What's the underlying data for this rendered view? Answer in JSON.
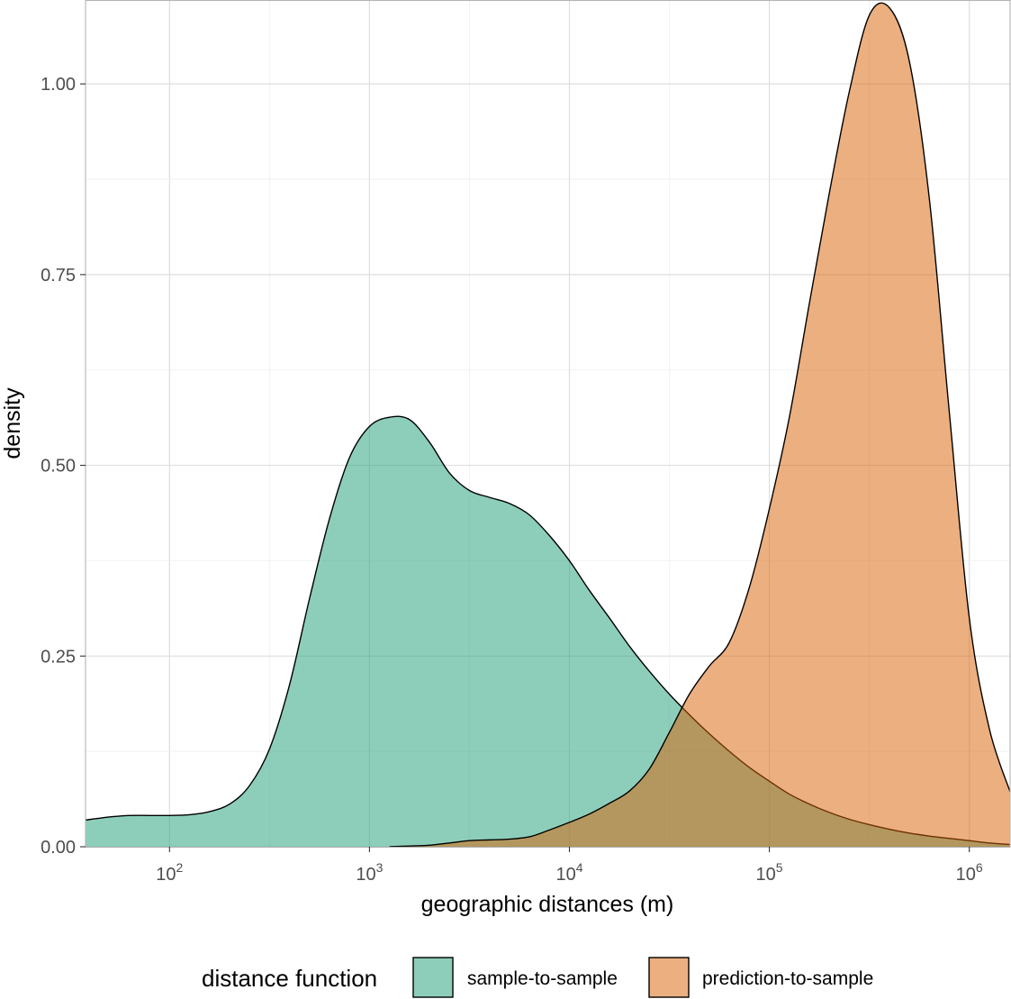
{
  "chart_data": {
    "type": "area",
    "subtype": "density",
    "xlabel": "geographic distances (m)",
    "ylabel": "density",
    "x_scale": "log10",
    "xlim": [
      38,
      1600000
    ],
    "ylim": [
      0,
      1.11
    ],
    "grid": true,
    "x_ticks": [
      {
        "value": 100,
        "base": "10",
        "exp": "2"
      },
      {
        "value": 1000,
        "base": "10",
        "exp": "3"
      },
      {
        "value": 10000,
        "base": "10",
        "exp": "4"
      },
      {
        "value": 100000,
        "base": "10",
        "exp": "5"
      },
      {
        "value": 1000000,
        "base": "10",
        "exp": "6"
      }
    ],
    "y_ticks": [
      {
        "value": 0,
        "label": "0.00"
      },
      {
        "value": 0.25,
        "label": "0.25"
      },
      {
        "value": 0.5,
        "label": "0.50"
      },
      {
        "value": 0.75,
        "label": "0.75"
      },
      {
        "value": 1.0,
        "label": "1.00"
      }
    ],
    "legend_title": "distance function",
    "legend_position": "bottom",
    "series": [
      {
        "name": "sample-to-sample",
        "color": "#1b9e77",
        "fill_opacity": 0.5,
        "x": [
          38,
          50,
          63,
          79,
          100,
          126,
          158,
          200,
          251,
          316,
          398,
          501,
          631,
          794,
          1000,
          1259,
          1585,
          2000,
          2512,
          3162,
          3981,
          5012,
          6310,
          7943,
          10000,
          12589,
          15849,
          19953,
          25119,
          31623,
          39811,
          50119,
          63096,
          79433,
          100000,
          125893,
          158489,
          199526,
          251189,
          316228,
          398107,
          501187,
          630957,
          794328,
          1000000,
          1258925,
          1600000
        ],
        "y": [
          0.035,
          0.039,
          0.041,
          0.041,
          0.041,
          0.042,
          0.046,
          0.056,
          0.08,
          0.128,
          0.212,
          0.325,
          0.43,
          0.51,
          0.551,
          0.563,
          0.56,
          0.53,
          0.49,
          0.467,
          0.458,
          0.45,
          0.435,
          0.408,
          0.375,
          0.336,
          0.3,
          0.263,
          0.23,
          0.2,
          0.173,
          0.148,
          0.125,
          0.104,
          0.086,
          0.069,
          0.056,
          0.045,
          0.036,
          0.029,
          0.023,
          0.018,
          0.014,
          0.011,
          0.008,
          0.005,
          0.003
        ]
      },
      {
        "name": "prediction-to-sample",
        "color": "#d95f02",
        "fill_opacity": 0.5,
        "x": [
          1259,
          1585,
          2000,
          2512,
          3162,
          3981,
          5012,
          6310,
          7943,
          10000,
          12589,
          15849,
          19953,
          25119,
          31623,
          39811,
          50119,
          63096,
          79433,
          100000,
          125893,
          158489,
          199526,
          251189,
          316228,
          398107,
          501187,
          630957,
          794328,
          1000000,
          1258925,
          1600000
        ],
        "y": [
          0,
          0.001,
          0.002,
          0.005,
          0.008,
          0.009,
          0.01,
          0.013,
          0.022,
          0.032,
          0.043,
          0.057,
          0.073,
          0.102,
          0.15,
          0.2,
          0.237,
          0.268,
          0.34,
          0.443,
          0.563,
          0.712,
          0.857,
          0.99,
          1.09,
          1.1,
          1.03,
          0.85,
          0.57,
          0.3,
          0.155,
          0.072
        ]
      }
    ]
  }
}
